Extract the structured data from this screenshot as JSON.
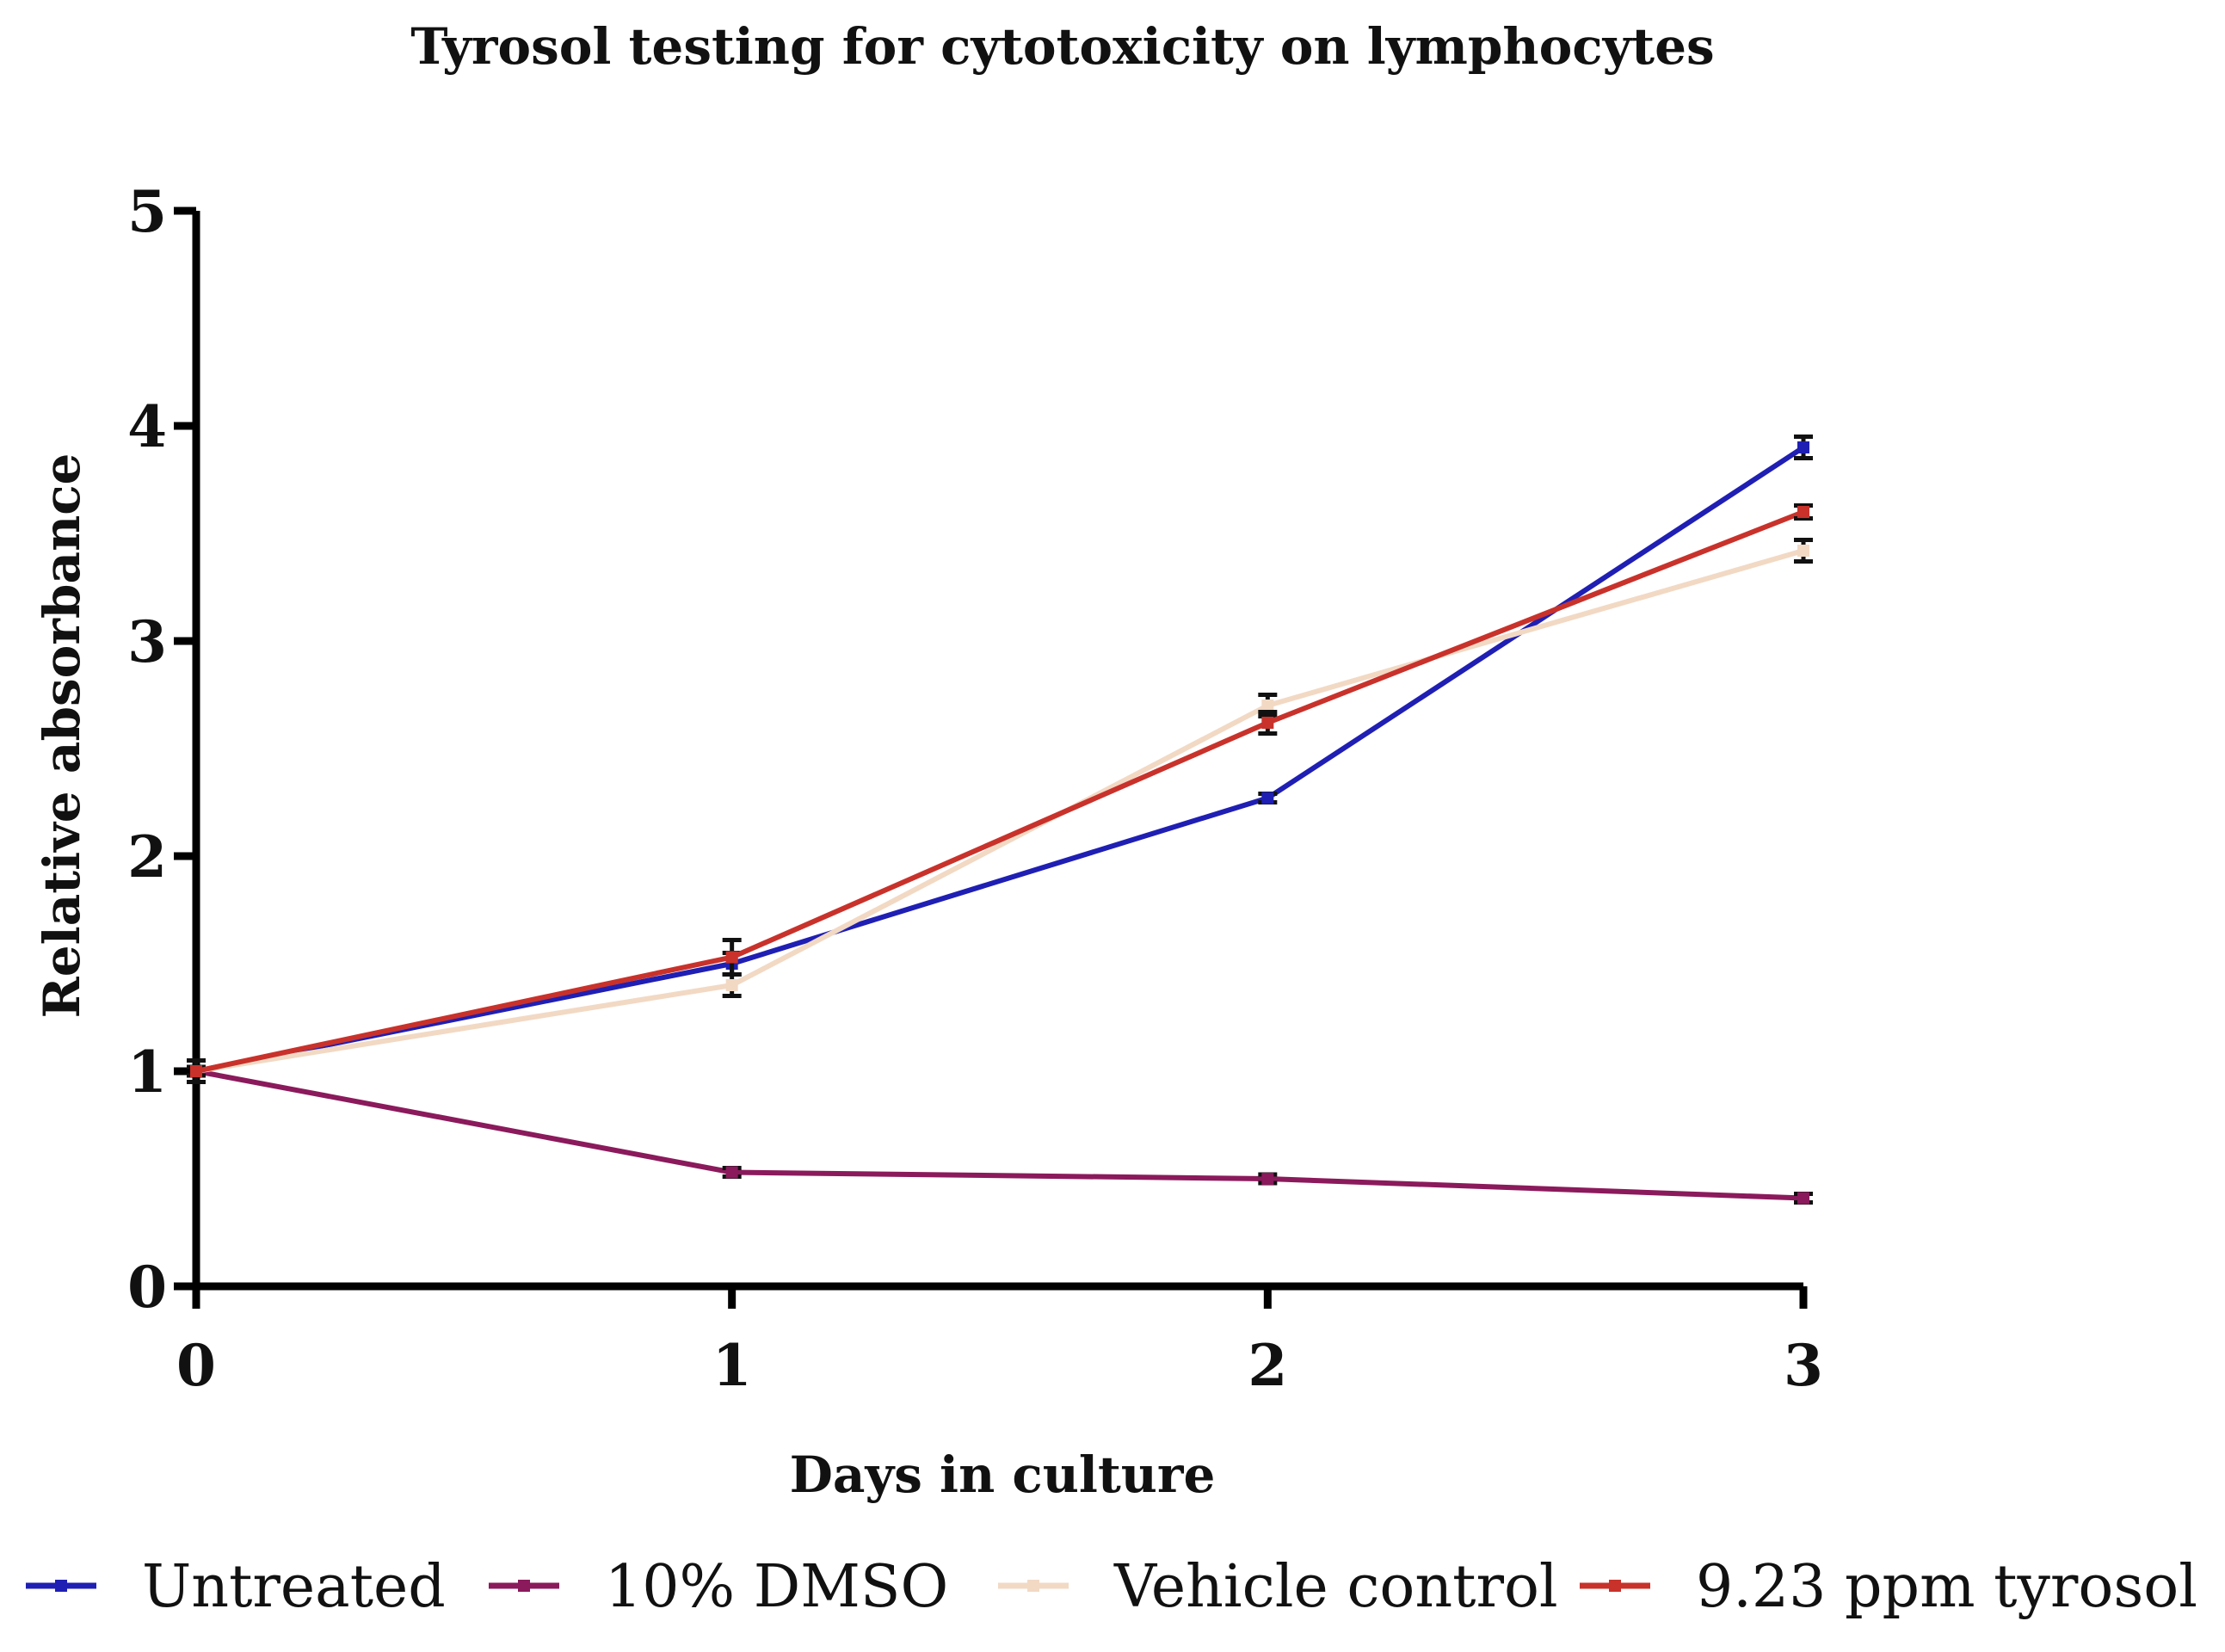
{
  "chart_data": {
    "type": "line",
    "title": "Tyrosol testing for cytotoxicity on lymphocytes",
    "xlabel": "Days in culture",
    "ylabel": "Relative absorbance",
    "x": [
      0,
      1,
      2,
      3
    ],
    "x_tick_labels": [
      "0",
      "1",
      "2",
      "3"
    ],
    "xlim": [
      0,
      3
    ],
    "ylim": [
      0,
      5
    ],
    "y_ticks": [
      0,
      1,
      2,
      3,
      4,
      5
    ],
    "y_tick_labels": [
      "0",
      "1",
      "2",
      "3",
      "4",
      "5"
    ],
    "grid": false,
    "legend_position": "bottom",
    "series": [
      {
        "name": "Untreated",
        "color": "#1f1fb4",
        "values": [
          1.0,
          1.5,
          2.27,
          3.9
        ],
        "errors": [
          0.05,
          0.05,
          0.02,
          0.05
        ]
      },
      {
        "name": "10% DMSO",
        "color": "#8b1a5c",
        "values": [
          1.0,
          0.53,
          0.5,
          0.41
        ],
        "errors": [
          0.02,
          0.02,
          0.02,
          0.02
        ]
      },
      {
        "name": "Vehicle control",
        "color": "#f2d9c4",
        "values": [
          1.0,
          1.4,
          2.7,
          3.42
        ],
        "errors": [
          0.05,
          0.05,
          0.05,
          0.05
        ]
      },
      {
        "name": "9.23 ppm tyrosol",
        "color": "#c8322b",
        "values": [
          1.0,
          1.53,
          2.62,
          3.6
        ],
        "errors": [
          0.05,
          0.08,
          0.05,
          0.03
        ]
      }
    ]
  }
}
